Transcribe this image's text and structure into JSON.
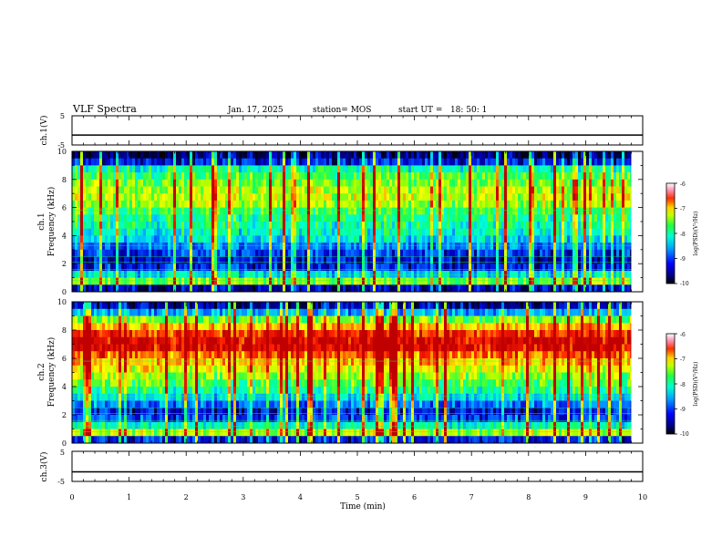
{
  "header": {
    "title": "VLF Spectra",
    "date": "Jan. 17, 2025",
    "station": "station= MOS",
    "start": "start UT =   18: 50: 1"
  },
  "colors": {
    "colormap": [
      "#000000",
      "#000044",
      "#0000c8",
      "#0050ff",
      "#00b0ff",
      "#00ffd8",
      "#10ff60",
      "#a0ff00",
      "#ffff00",
      "#ffa000",
      "#ff2000",
      "#c00000",
      "#ffffff"
    ],
    "trace": "#000000"
  },
  "chart_data": [
    {
      "type": "line",
      "name": "ch1-voltage",
      "ylabel": "ch.1(V)",
      "yticks": [
        "5",
        "-5"
      ],
      "ylim": [
        -5,
        5
      ],
      "x": [
        0,
        10
      ],
      "y": [
        -1.6,
        -1.6
      ],
      "xlim": [
        0,
        10
      ]
    },
    {
      "type": "heatmap",
      "name": "ch1-spectrogram",
      "ylabel_top": "ch.1",
      "ylabel": "Frequency (kHz)",
      "yticks": [
        "0",
        "2",
        "4",
        "6",
        "8",
        "10"
      ],
      "ylim": [
        0,
        10
      ],
      "xlim": [
        0,
        10
      ],
      "data_end_min": 9.8,
      "intensity_profile": [
        0.1,
        0.55,
        0.35,
        0.15,
        0.12,
        0.18,
        0.25,
        0.35,
        0.4,
        0.42,
        0.45,
        0.5,
        0.58,
        0.62,
        0.6,
        0.55,
        0.5,
        0.42,
        0.15,
        0.05
      ],
      "colorbar": {
        "label": "log(PSD)(V²/Hz)",
        "ticks": [
          "-6",
          "-7",
          "-8",
          "-9",
          "-10"
        ],
        "range": [
          -10,
          -6
        ]
      }
    },
    {
      "type": "heatmap",
      "name": "ch2-spectrogram",
      "ylabel_top": "ch.2",
      "ylabel": "Frequency (kHz)",
      "yticks": [
        "0",
        "2",
        "4",
        "6",
        "8",
        "10"
      ],
      "ylim": [
        0,
        10
      ],
      "xlim": [
        0,
        10
      ],
      "data_end_min": 9.8,
      "intensity_profile": [
        0.15,
        0.6,
        0.4,
        0.2,
        0.15,
        0.25,
        0.35,
        0.45,
        0.52,
        0.58,
        0.65,
        0.72,
        0.8,
        0.9,
        0.92,
        0.85,
        0.72,
        0.55,
        0.3,
        0.1
      ],
      "colorbar": {
        "label": "log(PSD)(V²/Hz)",
        "ticks": [
          "-6",
          "-7",
          "-8",
          "-9",
          "-10"
        ],
        "range": [
          -10,
          -6
        ]
      }
    },
    {
      "type": "line",
      "name": "ch3-voltage",
      "ylabel": "ch.3(V)",
      "yticks": [
        "5",
        "-5"
      ],
      "ylim": [
        -5,
        5
      ],
      "x": [
        0,
        10
      ],
      "y": [
        -1.8,
        -1.8
      ],
      "xlim": [
        0,
        10
      ],
      "xlabel": "Time (min)",
      "xticks": [
        "0",
        "1",
        "2",
        "3",
        "4",
        "5",
        "6",
        "7",
        "8",
        "9",
        "10"
      ]
    }
  ]
}
